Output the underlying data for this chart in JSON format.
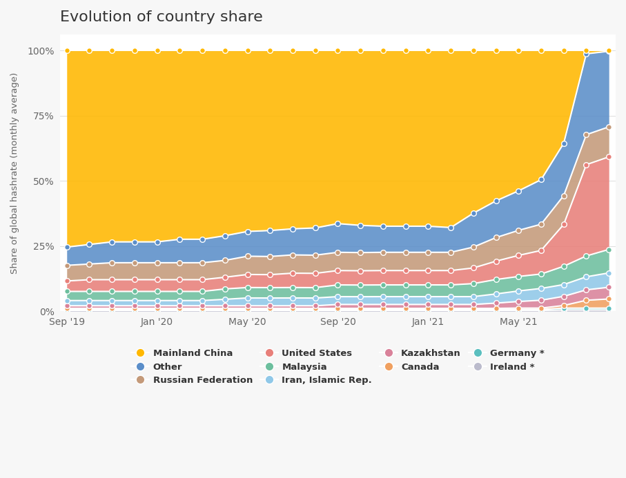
{
  "title": "Evolution of country share",
  "ylabel": "Share of global hashrate (monthly average)",
  "background_color": "#f7f7f7",
  "plot_background": "#ffffff",
  "dates_labels": [
    "Sep '19",
    "Jan '20",
    "May '20",
    "Sep '20",
    "Jan '21",
    "May '21"
  ],
  "tick_positions": [
    0,
    4,
    8,
    12,
    16,
    20
  ],
  "n_points": 25,
  "colors": {
    "Mainland China": "#FFB800",
    "Other": "#5B8EC9",
    "Russian Federation": "#C49A7A",
    "United States": "#E8807A",
    "Malaysia": "#6DBF9E",
    "Iran, Islamic Rep.": "#90C8E8",
    "Kazakhstan": "#D9829A",
    "Canada": "#F0A060",
    "Germany *": "#5BBFBF",
    "Ireland *": "#BBBBCC"
  },
  "stack_order": [
    "Ireland *",
    "Germany *",
    "Canada",
    "Kazakhstan",
    "Iran, Islamic Rep.",
    "Malaysia",
    "United States",
    "Russian Federation",
    "Other",
    "Mainland China"
  ],
  "legend_order": [
    "Mainland China",
    "Other",
    "Russian Federation",
    "United States",
    "Malaysia",
    "Iran, Islamic Rep.",
    "Kazakhstan",
    "Canada",
    "Germany *",
    "Ireland *"
  ],
  "series": {
    "Ireland *": [
      0.3,
      0.3,
      0.3,
      0.3,
      0.3,
      0.3,
      0.3,
      0.3,
      0.3,
      0.3,
      0.3,
      0.3,
      0.3,
      0.3,
      0.3,
      0.3,
      0.3,
      0.3,
      0.3,
      0.3,
      0.3,
      0.3,
      0.5,
      0.5,
      0.5
    ],
    "Germany *": [
      0.3,
      0.3,
      0.3,
      0.3,
      0.3,
      0.3,
      0.3,
      0.3,
      0.3,
      0.3,
      0.3,
      0.3,
      0.3,
      0.3,
      0.3,
      0.3,
      0.3,
      0.3,
      0.3,
      0.3,
      0.4,
      0.4,
      0.7,
      0.7,
      0.7
    ],
    "Canada": [
      0.5,
      0.5,
      0.5,
      0.5,
      0.5,
      0.5,
      0.5,
      0.5,
      0.5,
      0.5,
      0.5,
      0.5,
      0.5,
      0.5,
      0.5,
      0.5,
      0.5,
      0.5,
      0.5,
      0.5,
      0.5,
      0.5,
      1.0,
      3.0,
      3.5
    ],
    "Kazakhstan": [
      1.0,
      1.0,
      1.0,
      1.0,
      1.0,
      1.0,
      1.0,
      1.0,
      1.0,
      1.0,
      1.0,
      1.0,
      1.5,
      1.5,
      1.5,
      1.5,
      1.5,
      1.5,
      1.5,
      2.0,
      2.5,
      3.0,
      3.5,
      4.0,
      4.5
    ],
    "Iran, Islamic Rep.": [
      2.0,
      2.0,
      2.0,
      2.0,
      2.0,
      2.0,
      2.0,
      2.5,
      3.0,
      3.0,
      3.0,
      3.0,
      3.0,
      3.0,
      3.0,
      3.0,
      3.0,
      3.0,
      3.0,
      3.5,
      4.0,
      4.5,
      4.5,
      5.0,
      5.5
    ],
    "Malaysia": [
      3.5,
      3.5,
      3.5,
      3.5,
      3.5,
      3.5,
      3.5,
      4.0,
      4.0,
      4.0,
      4.0,
      4.0,
      4.5,
      4.5,
      4.5,
      4.5,
      4.5,
      4.5,
      5.0,
      5.5,
      5.5,
      5.5,
      7.0,
      8.0,
      9.0
    ],
    "United States": [
      4.0,
      4.5,
      4.5,
      4.5,
      4.5,
      4.5,
      4.5,
      4.5,
      5.0,
      5.0,
      5.5,
      5.5,
      5.5,
      5.5,
      5.5,
      5.5,
      5.5,
      5.5,
      6.0,
      7.0,
      8.0,
      9.0,
      16.0,
      35.0,
      35.5
    ],
    "Russian Federation": [
      6.0,
      6.0,
      6.5,
      6.5,
      6.5,
      6.5,
      6.5,
      6.5,
      7.0,
      7.0,
      7.0,
      7.0,
      7.0,
      7.0,
      7.0,
      7.0,
      7.0,
      7.0,
      8.0,
      9.0,
      9.5,
      10.0,
      11.0,
      11.5,
      11.5
    ],
    "Other": [
      7.0,
      7.5,
      8.0,
      8.0,
      8.0,
      9.0,
      9.0,
      9.5,
      9.5,
      10.0,
      10.0,
      10.5,
      11.0,
      10.5,
      10.0,
      10.0,
      10.0,
      9.5,
      13.0,
      14.0,
      15.0,
      17.0,
      20.0,
      31.0,
      29.0
    ],
    "Mainland China": [
      75.4,
      74.4,
      73.4,
      73.4,
      73.4,
      72.4,
      72.4,
      71.4,
      69.4,
      69.4,
      68.4,
      68.4,
      66.4,
      67.4,
      67.4,
      67.4,
      67.4,
      67.9,
      62.4,
      57.4,
      53.3,
      49.3,
      35.5,
      1.3,
      0.3
    ]
  }
}
